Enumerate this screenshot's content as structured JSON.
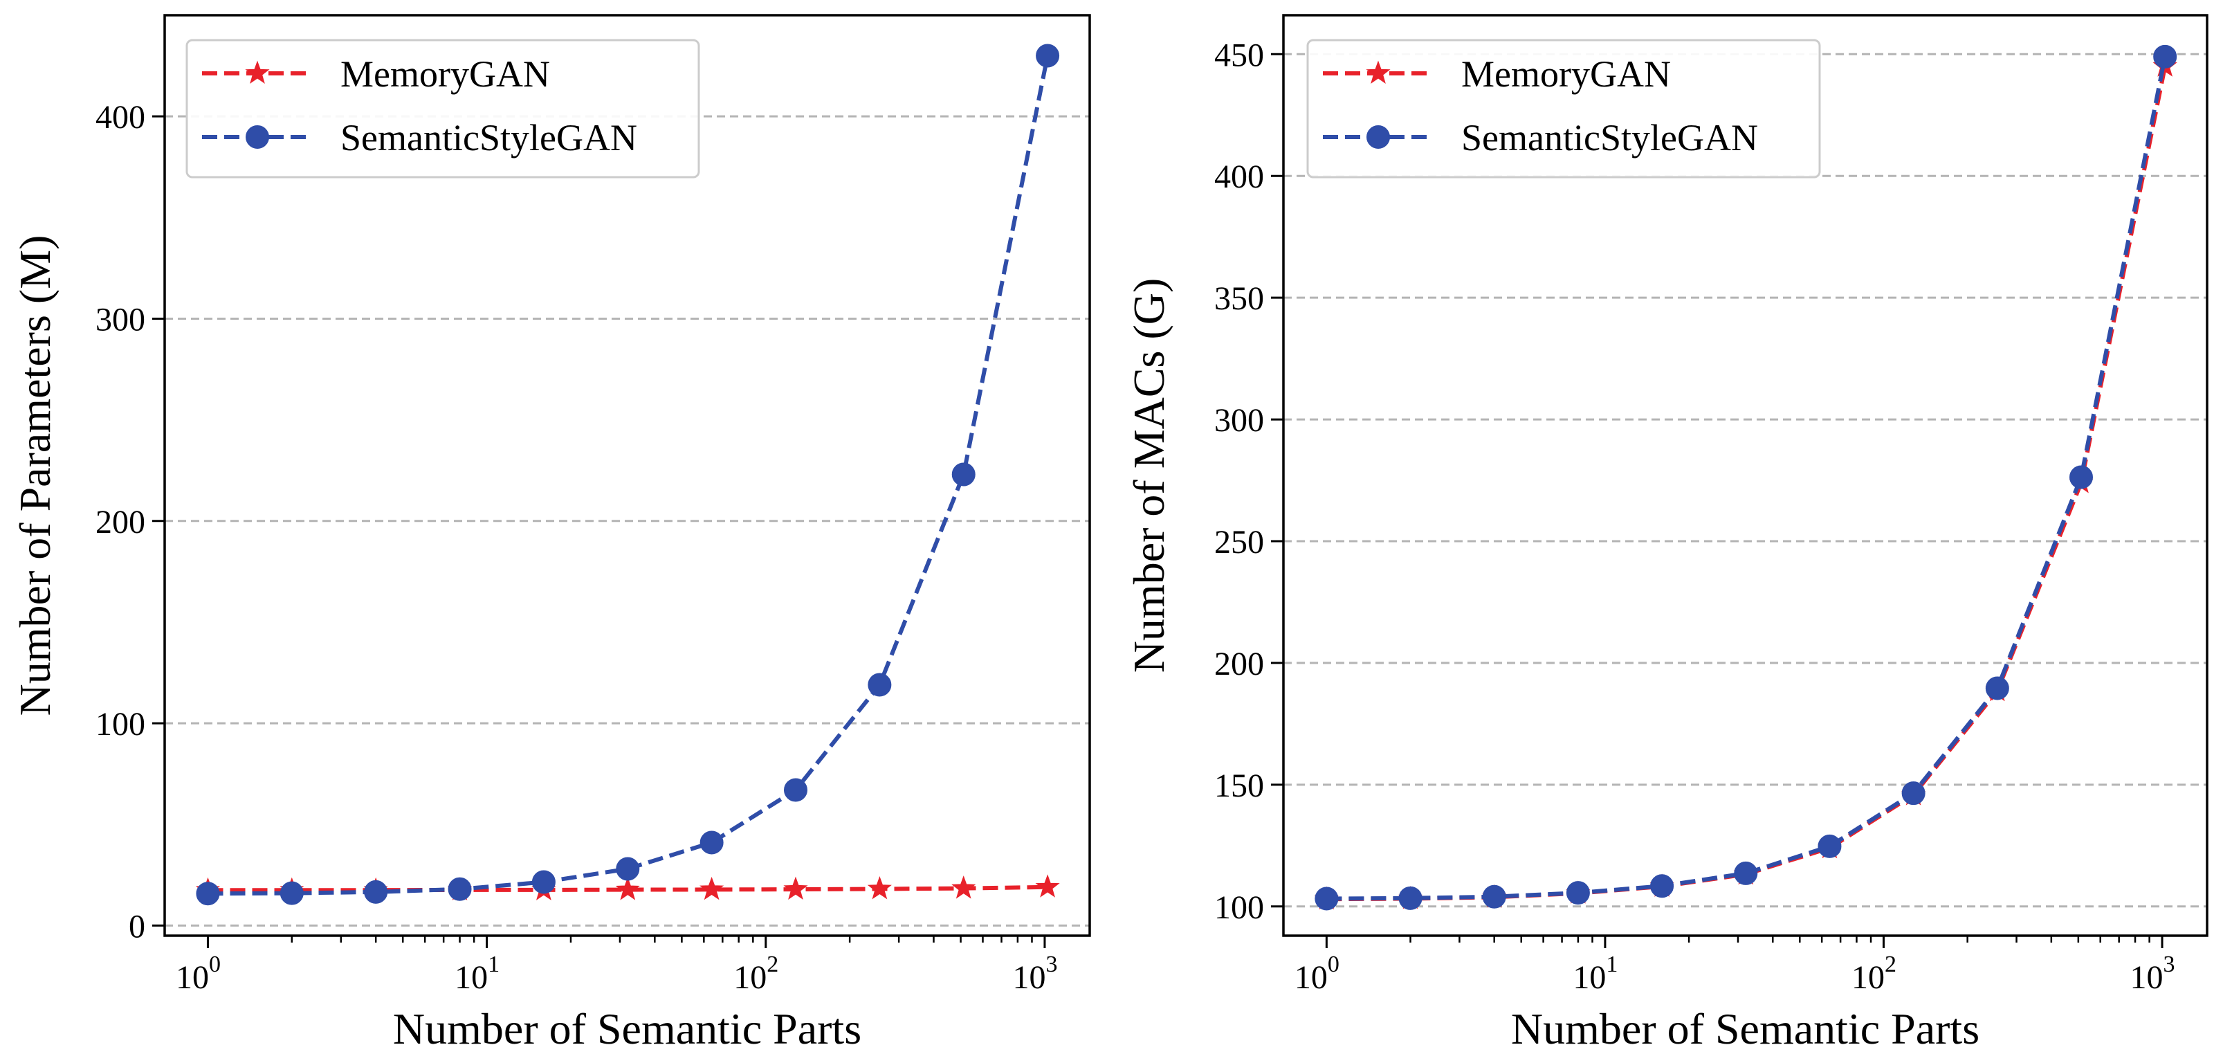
{
  "chart_data": [
    {
      "type": "line",
      "xscale": "log",
      "xlabel": "Number of Semantic Parts",
      "ylabel": "Number of Parameters (M)",
      "ylim": [
        -5,
        450
      ],
      "xlim": [
        0.7,
        1450
      ],
      "grid": "y-dashed",
      "legend_position": "top-left",
      "x": [
        1,
        2,
        4,
        8,
        16,
        32,
        64,
        128,
        256,
        512,
        1024
      ],
      "yticks": [
        {
          "value": 0,
          "label": "0"
        },
        {
          "value": 100,
          "label": "100"
        },
        {
          "value": 200,
          "label": "200"
        },
        {
          "value": 300,
          "label": "300"
        },
        {
          "value": 400,
          "label": "400"
        }
      ],
      "xticks": [
        {
          "value": 1,
          "base": "10",
          "exp": "0"
        },
        {
          "value": 10,
          "base": "10",
          "exp": "1"
        },
        {
          "value": 100,
          "base": "10",
          "exp": "2"
        },
        {
          "value": 1000,
          "base": "10",
          "exp": "3"
        }
      ],
      "series": [
        {
          "name": "MemoryGAN",
          "color": "#e8212a",
          "marker": "star",
          "values": [
            17.5,
            17.5,
            17.5,
            17.6,
            17.6,
            17.7,
            17.8,
            17.9,
            18.1,
            18.4,
            19.0
          ]
        },
        {
          "name": "SemanticStyleGAN",
          "color": "#2f4da8",
          "marker": "circle",
          "values": [
            15.8,
            16.0,
            16.6,
            18.0,
            21.5,
            28.0,
            41.0,
            67.0,
            119.0,
            223.0,
            430.0
          ]
        }
      ]
    },
    {
      "type": "line",
      "xscale": "log",
      "xlabel": "Number of Semantic Parts",
      "ylabel": "Number of MACs (G)",
      "ylim": [
        88,
        466
      ],
      "xlim": [
        0.7,
        1450
      ],
      "grid": "y-dashed",
      "legend_position": "top-left",
      "x": [
        1,
        2,
        4,
        8,
        16,
        32,
        64,
        128,
        256,
        512,
        1024
      ],
      "yticks": [
        {
          "value": 100,
          "label": "100"
        },
        {
          "value": 150,
          "label": "150"
        },
        {
          "value": 200,
          "label": "200"
        },
        {
          "value": 250,
          "label": "250"
        },
        {
          "value": 300,
          "label": "300"
        },
        {
          "value": 350,
          "label": "350"
        },
        {
          "value": 400,
          "label": "400"
        },
        {
          "value": 450,
          "label": "450"
        }
      ],
      "xticks": [
        {
          "value": 1,
          "base": "10",
          "exp": "0"
        },
        {
          "value": 10,
          "base": "10",
          "exp": "1"
        },
        {
          "value": 100,
          "base": "10",
          "exp": "2"
        },
        {
          "value": 1000,
          "base": "10",
          "exp": "3"
        }
      ],
      "series": [
        {
          "name": "MemoryGAN",
          "color": "#e8212a",
          "marker": "star",
          "values": [
            103.0,
            103.2,
            103.8,
            105.4,
            108.2,
            113.2,
            124.0,
            145.8,
            188.5,
            274.0,
            445.0
          ]
        },
        {
          "name": "SemanticStyleGAN",
          "color": "#2f4da8",
          "marker": "circle",
          "values": [
            103.2,
            103.4,
            104.0,
            105.6,
            108.4,
            113.6,
            124.7,
            146.5,
            189.6,
            276.3,
            449.0
          ]
        }
      ]
    }
  ]
}
